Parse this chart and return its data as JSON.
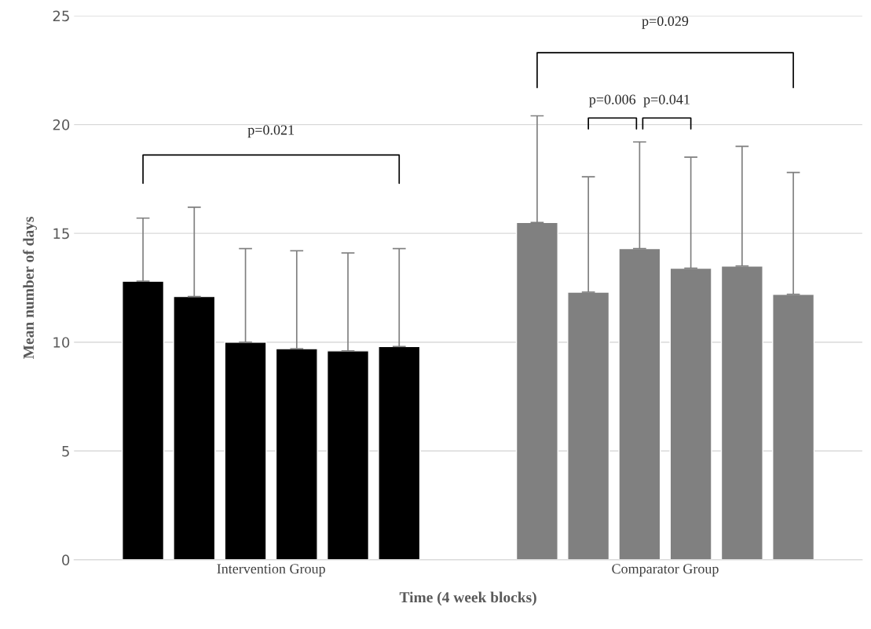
{
  "chart_data": {
    "type": "bar",
    "xlabel": "Time (4 week blocks)",
    "ylabel": "Mean number of days",
    "categories": [
      "Intervention Group",
      "Comparator Group"
    ],
    "series": [
      {
        "colors": [
          "#000000",
          "#808080"
        ],
        "values": [
          12.8,
          15.5
        ],
        "errors": [
          [
            12.8,
            15.7
          ],
          [
            15.5,
            20.4
          ]
        ]
      },
      {
        "colors": [
          "#000000",
          "#808080"
        ],
        "values": [
          12.1,
          12.3
        ],
        "errors": [
          [
            12.1,
            16.2
          ],
          [
            12.3,
            17.6
          ]
        ]
      },
      {
        "colors": [
          "#000000",
          "#808080"
        ],
        "values": [
          10.0,
          14.3
        ],
        "errors": [
          [
            10.0,
            14.3
          ],
          [
            14.3,
            19.2
          ]
        ]
      },
      {
        "colors": [
          "#000000",
          "#808080"
        ],
        "values": [
          9.7,
          13.4
        ],
        "errors": [
          [
            9.7,
            14.2
          ],
          [
            13.4,
            18.5
          ]
        ]
      },
      {
        "colors": [
          "#000000",
          "#808080"
        ],
        "values": [
          9.6,
          13.5
        ],
        "errors": [
          [
            9.6,
            14.1
          ],
          [
            13.5,
            19.0
          ]
        ]
      },
      {
        "colors": [
          "#000000",
          "#808080"
        ],
        "values": [
          9.8,
          12.2
        ],
        "errors": [
          [
            9.8,
            14.3
          ],
          [
            12.2,
            17.8
          ]
        ]
      }
    ],
    "ylim": [
      0,
      25
    ],
    "yticks": [
      0,
      5,
      10,
      15,
      20,
      25
    ],
    "grid": "y",
    "legend": false,
    "annotations": [
      "p=0.021",
      "p=0.029",
      "p=0.006",
      "p=0.041"
    ]
  }
}
